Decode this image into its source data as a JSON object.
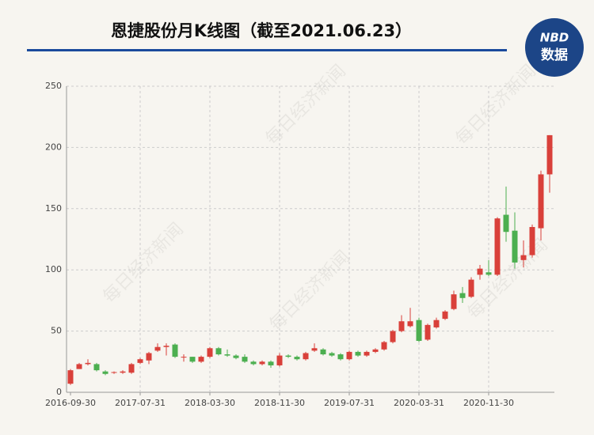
{
  "chart_data": {
    "type": "candlestick",
    "title": "恩捷股份月K线图（截至2021.06.23）",
    "logo": {
      "brand": "NBD",
      "text": "数据"
    },
    "watermark": "每日经济新闻",
    "categories": [
      "2016-09-30",
      null,
      null,
      null,
      null,
      null,
      null,
      null,
      "2017-07-31",
      null,
      null,
      null,
      null,
      null,
      null,
      null,
      "2018-03-30",
      null,
      null,
      null,
      null,
      null,
      null,
      null,
      "2018-11-30",
      null,
      null,
      null,
      null,
      null,
      null,
      null,
      "2019-07-31",
      null,
      null,
      null,
      null,
      null,
      null,
      null,
      "2020-03-31",
      null,
      null,
      null,
      null,
      null,
      null,
      null,
      "2020-11-30",
      null,
      null,
      null,
      null,
      null,
      null,
      null
    ],
    "open": [
      7,
      19,
      23,
      23,
      17,
      16,
      16,
      16,
      24,
      26,
      34,
      37,
      39,
      29,
      29,
      25,
      29,
      36,
      31,
      30,
      29,
      25,
      23,
      25,
      22,
      30,
      29,
      27,
      34,
      35,
      32,
      31,
      27,
      33,
      30,
      33,
      35,
      41,
      50,
      54,
      59,
      43,
      53,
      60,
      68,
      81,
      78,
      96,
      98,
      96,
      145,
      132,
      108,
      112,
      134,
      178
    ],
    "high": [
      19,
      24,
      27,
      24,
      18,
      17,
      18,
      24,
      28,
      33,
      40,
      40,
      40,
      31,
      29,
      30,
      37,
      37,
      35,
      31,
      31,
      26,
      26,
      26,
      32,
      31,
      30,
      33,
      40,
      36,
      33,
      32,
      34,
      34,
      34,
      36,
      42,
      51,
      63,
      69,
      61,
      56,
      61,
      67,
      83,
      86,
      94,
      104,
      108,
      143,
      168,
      147,
      124,
      137,
      181,
      210
    ],
    "low": [
      6,
      19,
      22,
      17,
      14,
      15,
      15,
      15,
      23,
      23,
      33,
      30,
      28,
      25,
      24,
      24,
      28,
      30,
      29,
      27,
      24,
      22,
      22,
      20,
      21,
      28,
      26,
      26,
      33,
      30,
      29,
      26,
      26,
      29,
      29,
      32,
      34,
      40,
      49,
      53,
      41,
      42,
      52,
      59,
      67,
      73,
      77,
      92,
      95,
      95,
      123,
      101,
      102,
      110,
      124,
      163
    ],
    "close": [
      18,
      23,
      24,
      18,
      15,
      16.5,
      17,
      23,
      27,
      32,
      37,
      38,
      29,
      29,
      25,
      29,
      36,
      31,
      30,
      28,
      25,
      23,
      25,
      22,
      30,
      29,
      27,
      32,
      36,
      31,
      30,
      27,
      33,
      30,
      33,
      35,
      41,
      50,
      58,
      58,
      42,
      55,
      59,
      66,
      80,
      77,
      92,
      101,
      96,
      142,
      131,
      106,
      112,
      135,
      178,
      210
    ],
    "up_color": "#d9403a",
    "down_color": "#4caf50",
    "ylim": [
      0,
      250
    ],
    "yticks": [
      0,
      50,
      100,
      150,
      200,
      250
    ],
    "grid": true
  }
}
